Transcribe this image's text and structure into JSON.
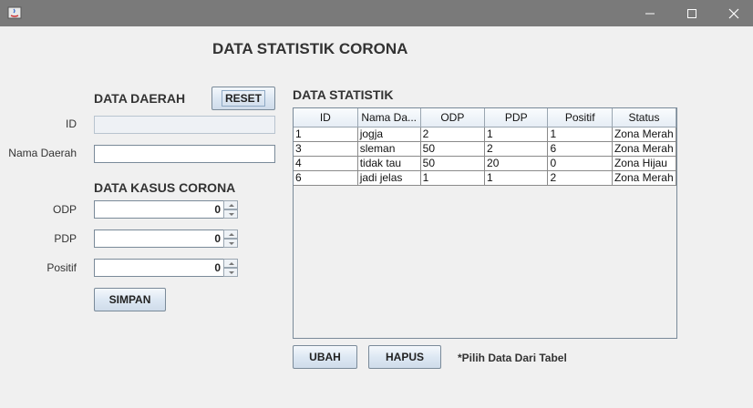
{
  "window": {
    "icon": "java-icon",
    "controls": [
      "minimize-icon",
      "maximize-icon",
      "close-icon"
    ]
  },
  "main_title": "DATA STATISTIK CORONA",
  "left": {
    "daerah_title": "DATA DAERAH",
    "reset_label": "RESET",
    "id_label": "ID",
    "id_value": "",
    "nama_label": "Nama Daerah",
    "nama_value": "",
    "kasus_title": "DATA KASUS CORONA",
    "odp_label": "ODP",
    "odp_value": "0",
    "pdp_label": "PDP",
    "pdp_value": "0",
    "positif_label": "Positif",
    "positif_value": "0",
    "simpan_label": "SIMPAN"
  },
  "right": {
    "statistik_title": "DATA STATISTIK",
    "table": {
      "columns": [
        "ID",
        "Nama Da...",
        "ODP",
        "PDP",
        "Positif",
        "Status"
      ],
      "rows": [
        [
          "1",
          "jogja",
          "2",
          "1",
          "1",
          "Zona Merah"
        ],
        [
          "3",
          "sleman",
          "50",
          "2",
          "6",
          "Zona Merah"
        ],
        [
          "4",
          "tidak tau",
          "50",
          "20",
          "0",
          "Zona Hijau"
        ],
        [
          "6",
          "jadi jelas",
          "1",
          "1",
          "2",
          "Zona Merah"
        ]
      ]
    },
    "ubah_label": "UBAH",
    "hapus_label": "HAPUS",
    "hint": "*Pilih Data Dari Tabel"
  }
}
